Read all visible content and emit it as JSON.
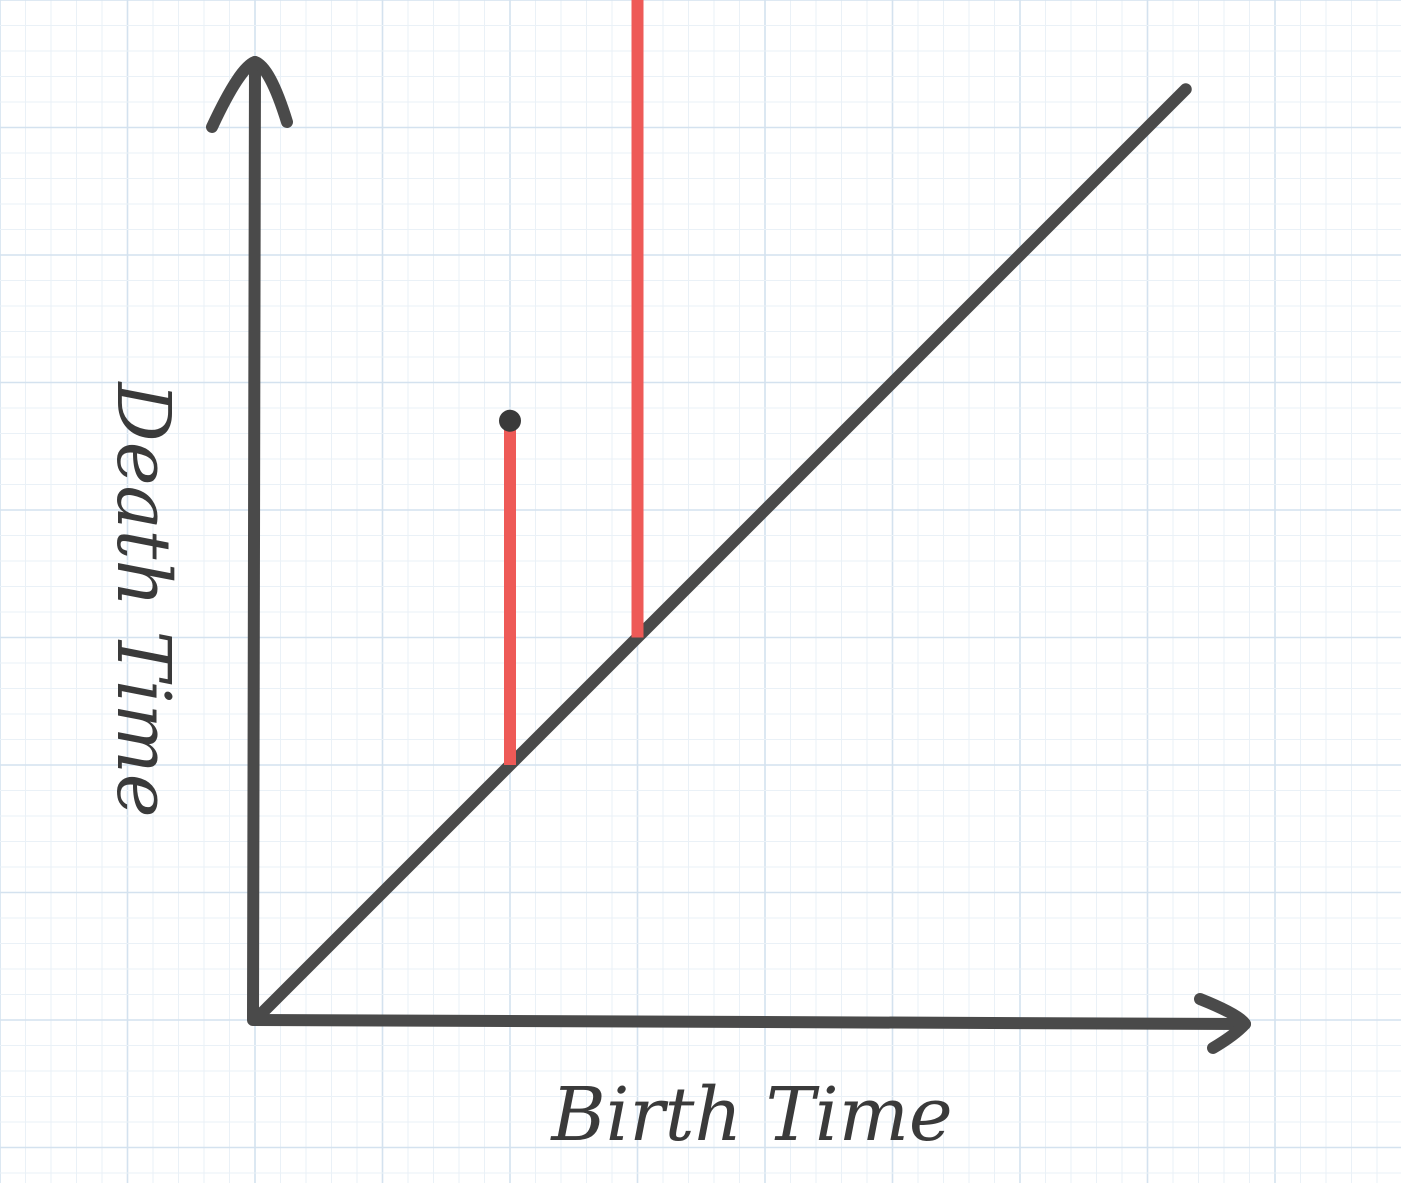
{
  "chart_data": {
    "type": "scatter",
    "title": "",
    "xlabel": "Birth Time",
    "ylabel": "Death Time",
    "xlim": [
      0,
      10
    ],
    "ylim": [
      0,
      10
    ],
    "grid": true,
    "diagonal": true,
    "points": [
      {
        "x": 2.0,
        "y": 4.7
      },
      {
        "x": 3.0,
        "y": 8.9
      }
    ],
    "colors": {
      "axis": "#4a4a4a",
      "bar": "#ee5a57",
      "point": "#3a3a3a",
      "grid_major": "#d4e2ef",
      "grid_minor": "#eaf1f7"
    }
  }
}
